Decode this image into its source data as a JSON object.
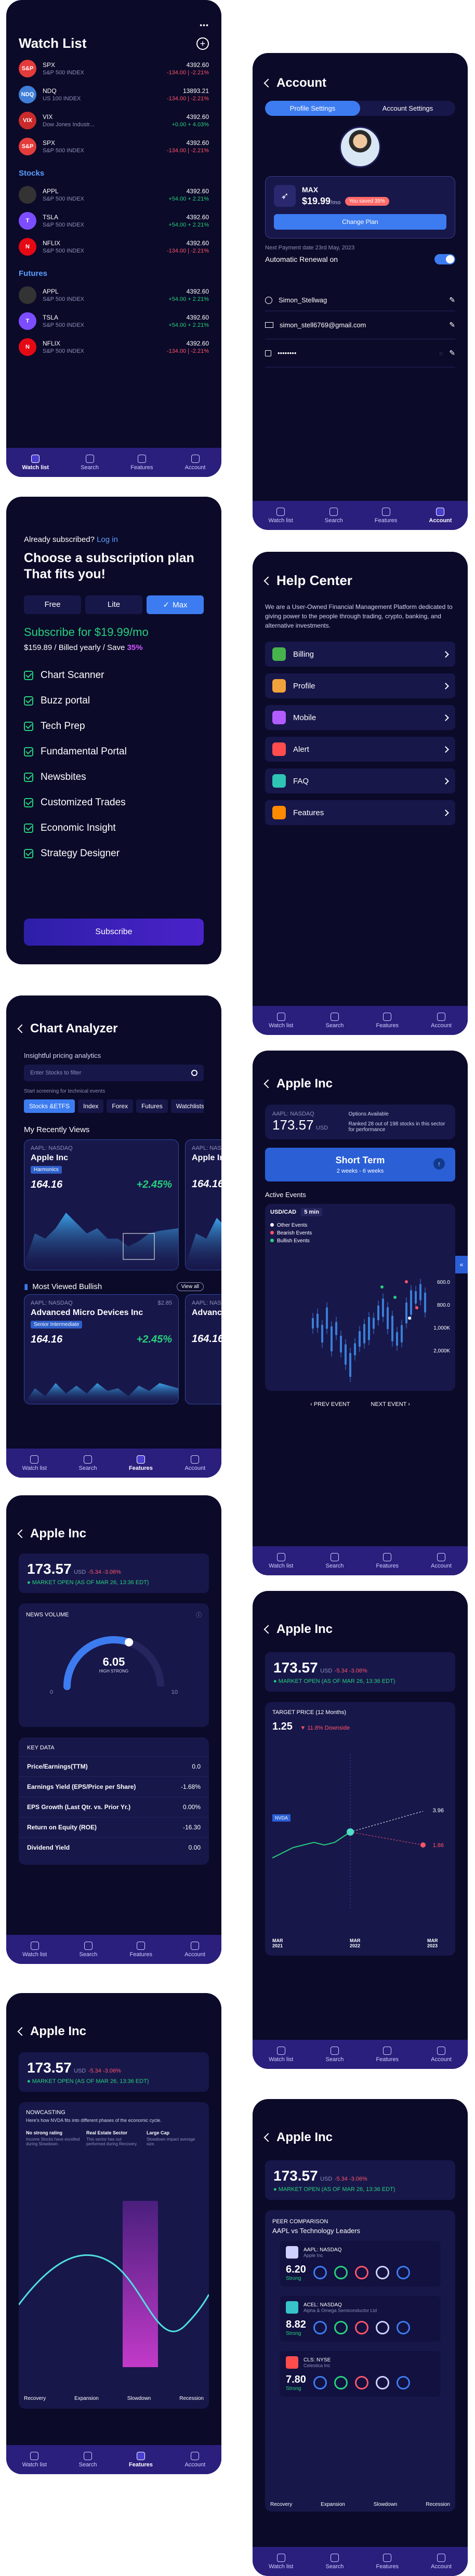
{
  "tabbar": [
    "Watch list",
    "Search",
    "Features",
    "Account"
  ],
  "watchlist": {
    "title": "Watch List",
    "more": "•••",
    "add": "+",
    "top": [
      {
        "logo": "S&P",
        "color": "#e43b3b",
        "sym": "SPX",
        "sub": "S&P 500 INDEX",
        "price": "4392.60",
        "chg": "-134.00 | -2.21%",
        "up": false
      },
      {
        "logo": "NDQ",
        "color": "#3f7fd8",
        "sym": "NDQ",
        "sub": "US 100 INDEX",
        "price": "13893.21",
        "chg": "-134.00 | -2.21%",
        "up": false
      },
      {
        "logo": "VIX",
        "color": "#c92a2a",
        "sym": "VIX",
        "sub": "Dow Jones Industr...",
        "price": "4392.60",
        "chg": "+0.00 + 4.03%",
        "up": true
      },
      {
        "logo": "S&P",
        "color": "#e43b3b",
        "sym": "SPX",
        "sub": "S&P 500 INDEX",
        "price": "4392.60",
        "chg": "-134.00 | -2.21%",
        "up": false
      }
    ],
    "stocks_label": "Stocks",
    "stocks": [
      {
        "logo": "",
        "color": "#333",
        "sym": "APPL",
        "sub": "S&P 500 INDEX",
        "price": "4392.60",
        "chg": "+54.00 + 2.21%",
        "up": true
      },
      {
        "logo": "T",
        "color": "#7c4dff",
        "sym": "TSLA",
        "sub": "S&P 500 INDEX",
        "price": "4392.60",
        "chg": "+54.00 + 2.21%",
        "up": true
      },
      {
        "logo": "N",
        "color": "#e50914",
        "sym": "NFLIX",
        "sub": "S&P 500 INDEX",
        "price": "4392.60",
        "chg": "-134.00 | -2.21%",
        "up": false
      }
    ],
    "futures_label": "Futures",
    "futures": [
      {
        "logo": "",
        "color": "#333",
        "sym": "APPL",
        "sub": "S&P 500 INDEX",
        "price": "4392.60",
        "chg": "+54.00 + 2.21%",
        "up": true
      },
      {
        "logo": "T",
        "color": "#7c4dff",
        "sym": "TSLA",
        "sub": "S&P 500 INDEX",
        "price": "4392.60",
        "chg": "+54.00 + 2.21%",
        "up": true
      },
      {
        "logo": "N",
        "color": "#e50914",
        "sym": "NFLIX",
        "sub": "S&P 500 INDEX",
        "price": "4392.60",
        "chg": "-134.00 | -2.21%",
        "up": false
      }
    ]
  },
  "account": {
    "title": "Account",
    "tab_profile": "Profile Settings",
    "tab_account": "Account Settings",
    "plan_name": "MAX",
    "plan_price": "$19.99",
    "plan_unit": "/mo",
    "plan_badge": "You saved 35%",
    "change_plan": "Change Plan",
    "next_payment": "Next Payment date 23rd May, 2023",
    "auto_renew": "Automatic Renewal on",
    "username": "Simon_Stellwag",
    "email": "simon_stell6769@gmail.com",
    "password": "••••••••"
  },
  "subscription": {
    "already": "Already subscribed?",
    "login": "Log in",
    "headline": "Choose a subscription plan That fits you!",
    "plans": [
      "Free",
      "Lite",
      "Max"
    ],
    "price_line": "Subscribe for $19.99/mo",
    "billed": "$159.89 / Billed yearly / Save",
    "save": "35%",
    "features": [
      "Chart Scanner",
      "Buzz portal",
      "Tech Prep",
      "Fundamental Portal",
      "Newsbites",
      "Customized Trades",
      "Economic Insight",
      "Strategy Designer"
    ],
    "cta": "Subscribe"
  },
  "help": {
    "title": "Help Center",
    "intro": "We are a User-Owned Financial Management Platform dedicated to giving power to the people through trading, crypto, banking, and alternative investments.",
    "items": [
      {
        "label": "Billing",
        "color": "#47b34d"
      },
      {
        "label": "Profile",
        "color": "#f0a23b"
      },
      {
        "label": "Mobile",
        "color": "#b05cff"
      },
      {
        "label": "Alert",
        "color": "#ff4d4d"
      },
      {
        "label": "FAQ",
        "color": "#2ec4b6"
      },
      {
        "label": "Features",
        "color": "#ff8a00"
      }
    ]
  },
  "analyzer": {
    "title": "Chart Analyzer",
    "insight": "Insightful pricing analytics",
    "search_placeholder": "Enter Stocks to filter",
    "tech_label": "Start screening for technical events",
    "chips": [
      "Stocks &ETFS",
      "Index",
      "Forex",
      "Futures",
      "Watchlists"
    ],
    "recent": "My Recently Views",
    "most_bull": "Most Viewed Bullish",
    "view_all": "View all",
    "card1": {
      "ticker": "AAPL: NASDAQ",
      "name": "Apple Inc",
      "tag": "Harmonics",
      "price": "164.16",
      "chg": "+2.45%"
    },
    "card1b": {
      "ticker": "AAPL: NASDAQ",
      "name": "Apple Inc",
      "price": "164.16"
    },
    "card2": {
      "ticker": "AAPL: NASDAQ",
      "price_small": "$2.85",
      "name": "Advanced Micro Devices Inc",
      "tag": "Senior Intermediate",
      "price": "164.16",
      "chg": "+2.45%"
    },
    "card2b": {
      "ticker": "AAPL: NASDAQ",
      "name": "Advanced",
      "price": "164.16"
    }
  },
  "apple_events": {
    "title": "Apple Inc",
    "ticker": "AAPL: NASDAQ",
    "price": "173.57",
    "unit": "USD",
    "options": "Options Available",
    "ranked": "Ranked 28 out of 198 stocks in this sector for performance",
    "term": "Short Term",
    "term_sub": "2 weeks - 6 weeks",
    "active": "Active Events",
    "pair": "USD/CAD",
    "interval": "5 min",
    "legend": [
      "Other Events",
      "Bearish Events",
      "Bullish Events"
    ],
    "prices": [
      "600.0",
      "800.0",
      "1,000K",
      "2,000K"
    ],
    "prev": "PREV EVENT",
    "next": "NEXT EVENT"
  },
  "apple_news": {
    "title": "Apple Inc",
    "price": "173.57",
    "unit": "USD",
    "chg": "-5.34 -3.06%",
    "market": "MARKET OPEN (AS OF MAR 26, 13:36 EDT)",
    "news_volume": "NEWS VOLUME",
    "gauge_value": "6.05",
    "gauge_sub": "HIGH STRONG",
    "gauge_min": "0",
    "gauge_max": "10",
    "key_data": "KEY DATA",
    "rows": [
      {
        "k": "Price/Earnings(TTM)",
        "v": "0.0"
      },
      {
        "k": "Earnings Yield (EPS/Price per Share)",
        "v": "-1.68%"
      },
      {
        "k": "EPS Growth (Last Qtr. vs. Prior Yr.)",
        "v": "0.00%"
      },
      {
        "k": "Return on Equity (ROE)",
        "v": "-16.30"
      },
      {
        "k": "Dividend Yield",
        "v": "0.00"
      }
    ]
  },
  "apple_target": {
    "title": "Apple Inc",
    "price": "173.57",
    "unit": "USD",
    "chg": "-5.34 -3.06%",
    "market": "MARKET OPEN (AS OF MAR 26, 13:36 EDT)",
    "target_label": "TARGET PRICE (12 Months)",
    "target_value": "1.25",
    "target_delta": "11.8% Downside",
    "ticker_label": "NVDA",
    "high": "3.96",
    "low": "1.86",
    "dates": [
      "MAR 2021",
      "MAR 2022",
      "MAR 2023"
    ]
  },
  "apple_nowcast": {
    "title": "Apple Inc",
    "price": "173.57",
    "unit": "USD",
    "chg": "-5.34 -3.06%",
    "market": "MARKET OPEN (AS OF MAR 26, 13:36 EDT)",
    "label": "NOWCASTING",
    "desc": "Here's how NVDA fits into different phases of the economic cycle.",
    "cols": [
      {
        "h": "No strong rating",
        "s": "Income Stocks have excelled during Slowdown."
      },
      {
        "h": "Real Estate Sector",
        "s": "This sector has out performed during Recovery."
      },
      {
        "h": "Large Cap",
        "s": "Slowdown impact average size."
      }
    ],
    "phases": [
      "Recovery",
      "Expansion",
      "Slowdown",
      "Recession"
    ]
  },
  "apple_peer": {
    "title": "Apple Inc",
    "price": "173.57",
    "unit": "USD",
    "chg": "-5.34 -3.06%",
    "market": "MARKET OPEN (AS OF MAR 26, 13:36 EDT)",
    "label": "PEER COMPARISON",
    "sub": "AAPL vs Technology Leaders",
    "peers": [
      {
        "ticker": "AAPL: NASDAQ",
        "name": "Apple Inc",
        "score": "6.20",
        "rating": "Strong",
        "color": "#cfd0ff"
      },
      {
        "ticker": "ACEL: NASDAQ",
        "name": "Alpha & Omega Semiconductor Ltd",
        "score": "8.82",
        "rating": "Strong",
        "color": "#36c3c9"
      },
      {
        "ticker": "CLS: NYSE",
        "name": "Celestica Inc",
        "score": "7.80",
        "rating": "Strong",
        "color": "#ff4d4d"
      }
    ],
    "phases": [
      "Recovery",
      "Expansion",
      "Slowdown",
      "Recession"
    ]
  }
}
